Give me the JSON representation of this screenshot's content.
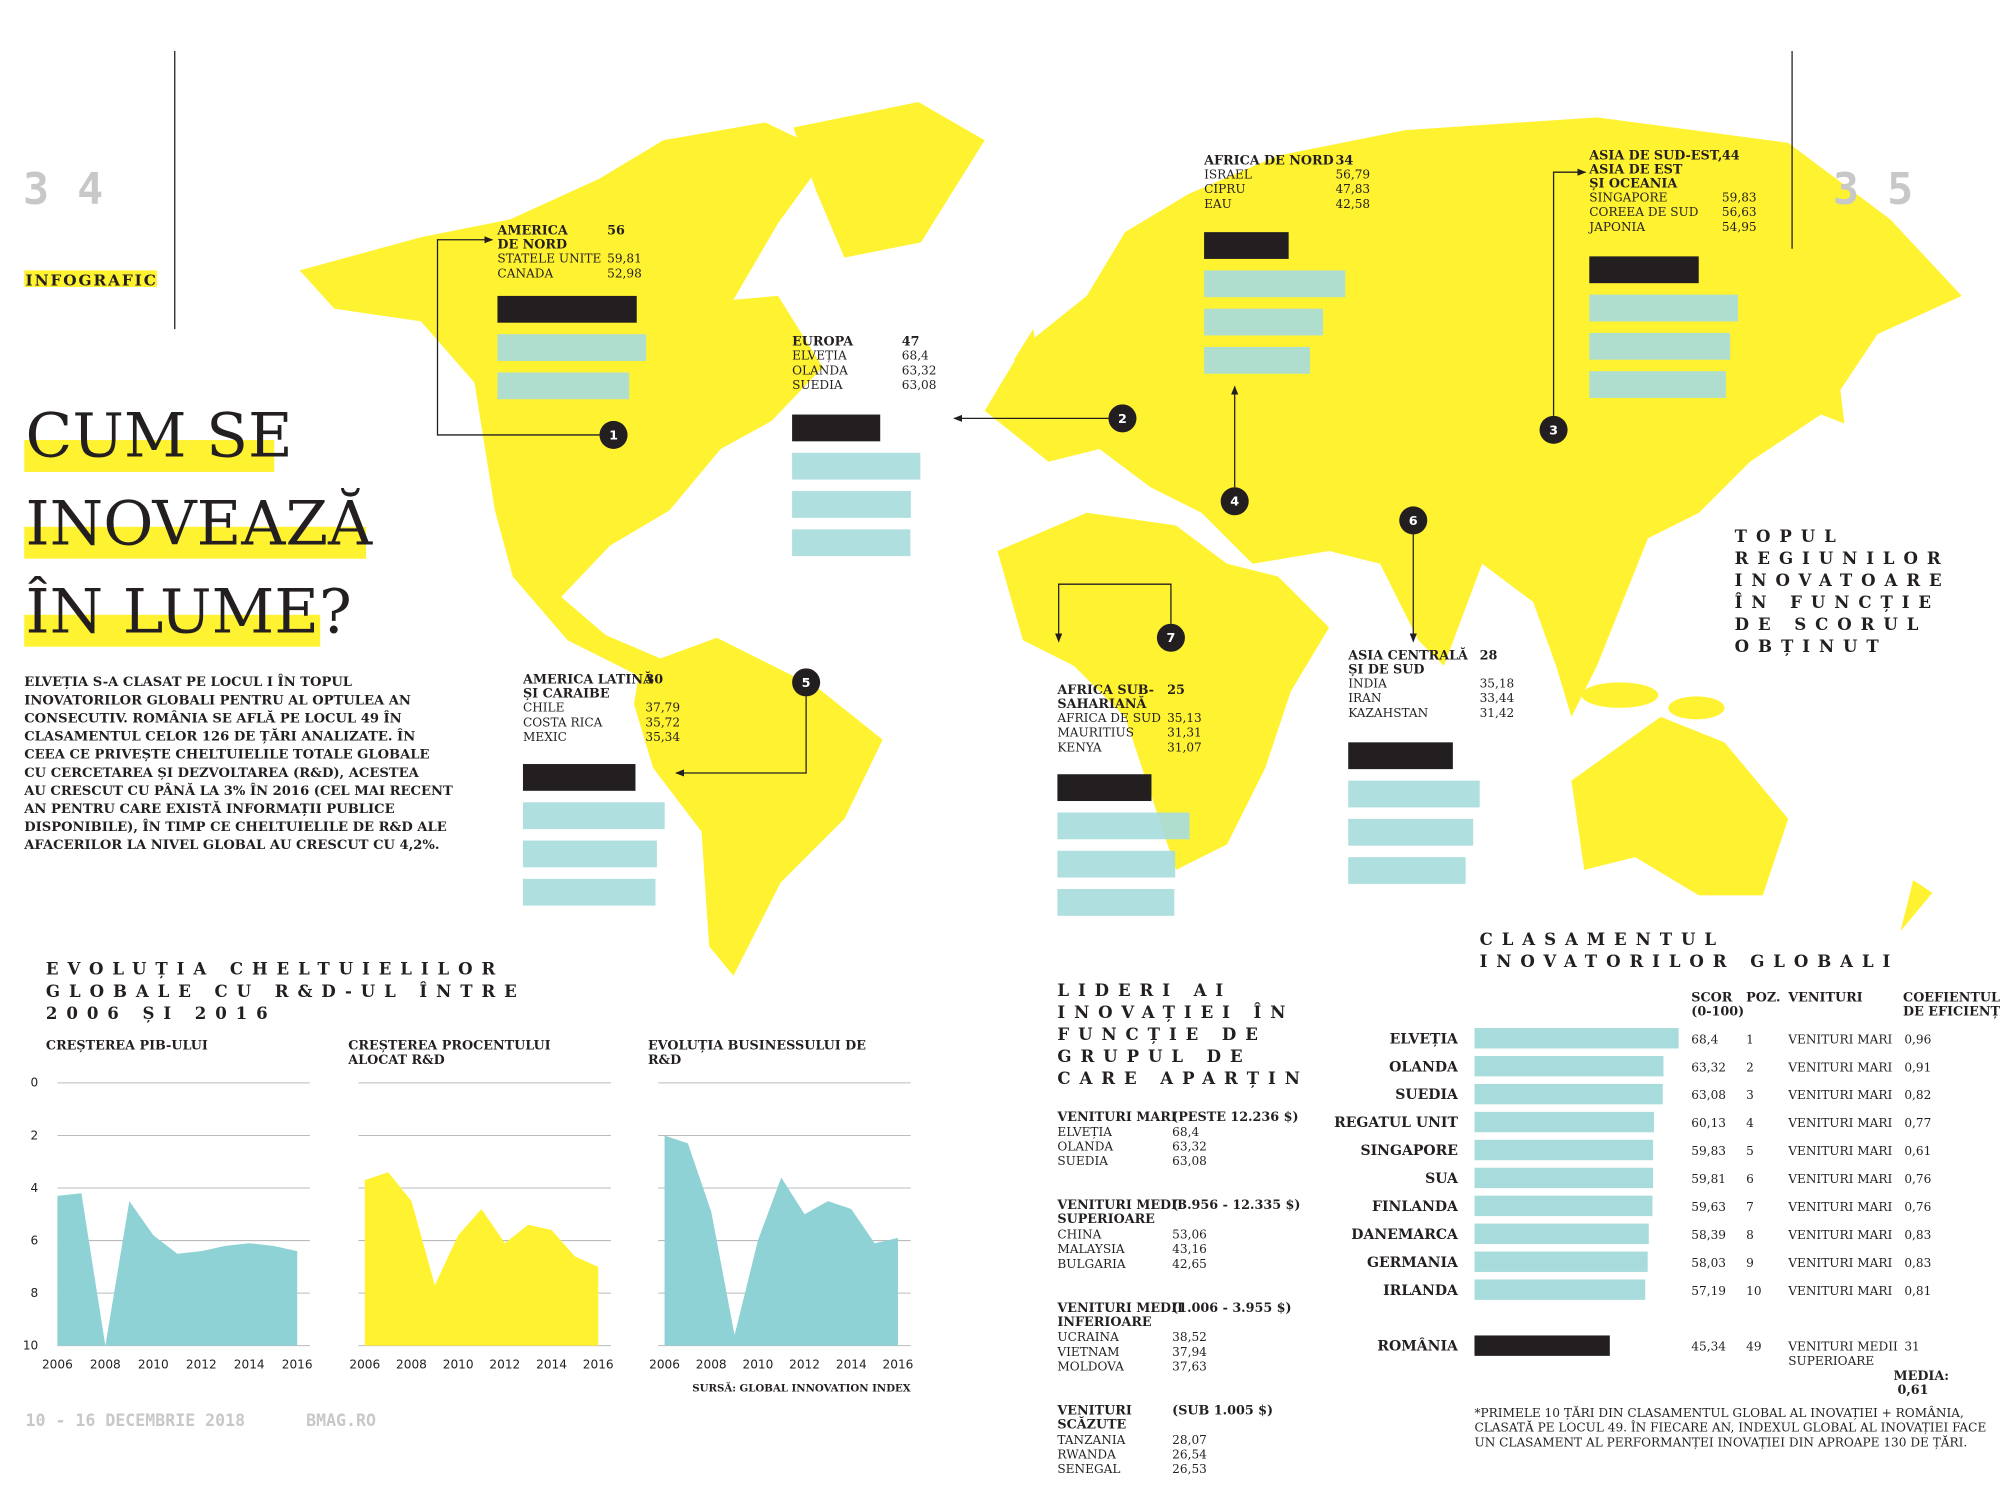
{
  "header": {
    "left_page": "34",
    "right_page": "35",
    "section": "INFOGRAFIC"
  },
  "title_lines": [
    "CUM SE",
    "INOVEAZĂ",
    "ÎN LUME?"
  ],
  "intro_lines": [
    "ELVEȚIA S-A CLASAT PE LOCUL I ÎN TOPUL",
    "INOVATORILOR GLOBALI PENTRU AL OPTULEA AN",
    "CONSECUTIV. ROMÂNIA SE AFLĂ PE LOCUL 49 ÎN",
    "CLASAMENTUL CELOR 126 DE ȚĂRI ANALIZATE. ÎN",
    "CEEA CE PRIVEȘTE CHELTUIELILE TOTALE GLOBALE",
    "CU CERCETAREA ȘI DEZVOLTAREA (R&D), ACESTEA",
    "AU CRESCUT CU PÂNĂ LA 3% ÎN 2016 (CEL MAI RECENT",
    "AN PENTRU CARE EXISTĂ INFORMAȚII PUBLICE",
    "DISPONIBILE), ÎN TIMP CE CHELTUIELILE DE R&D ALE",
    "AFACERILOR LA NIVEL GLOBAL AU CRESCUT CU 4,2%."
  ],
  "regions_title_lines": [
    "TOPUL",
    "REGIUNILOR",
    "INOVATOARE",
    "ÎN FUNCȚIE",
    "DE SCORUL",
    "OBȚINUT"
  ],
  "regions": [
    {
      "marker": "1",
      "name": [
        "AMERICA",
        "DE NORD"
      ],
      "score": 56,
      "countries": [
        {
          "name": "STATELE UNITE",
          "value": 59.81,
          "label": "59,81"
        },
        {
          "name": "CANADA",
          "value": 52.98,
          "label": "52,98"
        }
      ]
    },
    {
      "marker": "2",
      "name": [
        "EUROPA"
      ],
      "score": 47,
      "countries": [
        {
          "name": "ELVEȚIA",
          "value": 68.4,
          "label": "68,4"
        },
        {
          "name": "OLANDA",
          "value": 63.32,
          "label": "63,32"
        },
        {
          "name": "SUEDIA",
          "value": 63.08,
          "label": "63,08"
        }
      ]
    },
    {
      "marker": "3",
      "name": [
        "ASIA DE SUD-EST,",
        "ASIA DE EST",
        "ȘI OCEANIA"
      ],
      "score": 44,
      "countries": [
        {
          "name": "SINGAPORE",
          "value": 59.83,
          "label": "59,83"
        },
        {
          "name": "COREEA DE SUD",
          "value": 56.63,
          "label": "56,63"
        },
        {
          "name": "JAPONIA",
          "value": 54.95,
          "label": "54,95"
        }
      ]
    },
    {
      "marker": "4",
      "name": [
        "AFRICA DE NORD"
      ],
      "score": 34,
      "countries": [
        {
          "name": "ISRAEL",
          "value": 56.79,
          "label": "56,79"
        },
        {
          "name": "CIPRU",
          "value": 47.83,
          "label": "47,83"
        },
        {
          "name": "EAU",
          "value": 42.58,
          "label": "42,58"
        }
      ]
    },
    {
      "marker": "5",
      "name": [
        "AMERICA LATINĂ",
        "ȘI CARAIBE"
      ],
      "score": 30,
      "countries": [
        {
          "name": "CHILE",
          "value": 37.79,
          "label": "37,79"
        },
        {
          "name": "COSTA RICA",
          "value": 35.72,
          "label": "35,72"
        },
        {
          "name": "MEXIC",
          "value": 35.34,
          "label": "35,34"
        }
      ]
    },
    {
      "marker": "6",
      "name": [
        "ASIA CENTRALĂ",
        "ȘI DE SUD"
      ],
      "score": 28,
      "countries": [
        {
          "name": "INDIA",
          "value": 35.18,
          "label": "35,18"
        },
        {
          "name": "IRAN",
          "value": 33.44,
          "label": "33,44"
        },
        {
          "name": "KAZAHSTAN",
          "value": 31.42,
          "label": "31,42"
        }
      ]
    },
    {
      "marker": "7",
      "name": [
        "AFRICA SUB-",
        "SAHARIANĂ"
      ],
      "score": 25,
      "countries": [
        {
          "name": "AFRICA DE SUD",
          "value": 35.13,
          "label": "35,13"
        },
        {
          "name": "MAURITIUS",
          "value": 31.31,
          "label": "31,31"
        },
        {
          "name": "KENYA",
          "value": 31.07,
          "label": "31,07"
        }
      ]
    }
  ],
  "spending_title_lines": [
    "EVOLUȚIA CHELTUIELILOR",
    "GLOBALE CU R&D-UL ÎNTRE",
    "2006 ȘI 2016"
  ],
  "chart_data": [
    {
      "type": "area",
      "title": "CREȘTEREA PIB-ULUI",
      "color": "#8ed2d6",
      "x": [
        2006,
        2007,
        2008,
        2009,
        2010,
        2011,
        2012,
        2013,
        2014,
        2015,
        2016
      ],
      "values": [
        4.3,
        4.2,
        10,
        4.5,
        5.8,
        6.5,
        6.4,
        6.2,
        6.1,
        6.2,
        6.4
      ],
      "xlim": [
        2006,
        2016
      ],
      "xticks": [
        2006,
        2008,
        2010,
        2012,
        2014,
        2016
      ],
      "ylim": [
        10,
        0
      ],
      "yticks": [
        0,
        2,
        4,
        6,
        8,
        10
      ],
      "grid": true
    },
    {
      "type": "area",
      "title": "CREȘTEREA PROCENTULUI ALOCAT R&D",
      "color": "#fff230",
      "x": [
        2006,
        2007,
        2008,
        2009,
        2010,
        2011,
        2012,
        2013,
        2014,
        2015,
        2016
      ],
      "values": [
        3.7,
        3.4,
        4.5,
        7.7,
        5.8,
        4.8,
        6.1,
        5.4,
        5.6,
        6.6,
        7.0
      ],
      "xlim": [
        2006,
        2016
      ],
      "xticks": [
        2006,
        2008,
        2010,
        2012,
        2014,
        2016
      ],
      "ylim": [
        10,
        0
      ],
      "yticks": [
        0,
        2,
        4,
        6,
        8,
        10
      ],
      "grid": true
    },
    {
      "type": "area",
      "title": "EVOLUȚIA BUSINESSULUI DE R&D",
      "color": "#8ed2d6",
      "x": [
        2006,
        2007,
        2008,
        2009,
        2010,
        2011,
        2012,
        2013,
        2014,
        2015,
        2016
      ],
      "values": [
        2.0,
        2.3,
        4.9,
        9.6,
        6.0,
        3.6,
        5.0,
        4.5,
        4.8,
        6.1,
        5.9
      ],
      "xlim": [
        2006,
        2016
      ],
      "xticks": [
        2006,
        2008,
        2010,
        2012,
        2014,
        2016
      ],
      "ylim": [
        10,
        0
      ],
      "yticks": [
        0,
        2,
        4,
        6,
        8,
        10
      ],
      "grid": true
    }
  ],
  "source": "SURSĂ: GLOBAL INNOVATION INDEX",
  "leaders": {
    "title_lines": [
      "LIDERI AI",
      "INOVAȚIEI ÎN",
      "FUNCȚIE DE",
      "GRUPUL DE",
      "CARE APARȚIN"
    ],
    "groups": [
      {
        "title": [
          "VENITURI MARI"
        ],
        "range": "(PESTE 12.236 $)",
        "rows": [
          [
            "ELVEȚIA",
            "68,4"
          ],
          [
            "OLANDA",
            "63,32"
          ],
          [
            "SUEDIA",
            "63,08"
          ]
        ]
      },
      {
        "title": [
          "VENITURI MEDII",
          "SUPERIOARE"
        ],
        "range": "(3.956 - 12.335 $)",
        "rows": [
          [
            "CHINA",
            "53,06"
          ],
          [
            "MALAYSIA",
            "43,16"
          ],
          [
            "BULGARIA",
            "42,65"
          ]
        ]
      },
      {
        "title": [
          "VENITURI MEDII",
          "INFERIOARE"
        ],
        "range": "(1.006 - 3.955 $)",
        "rows": [
          [
            "UCRAINA",
            "38,52"
          ],
          [
            "VIETNAM",
            "37,94"
          ],
          [
            "MOLDOVA",
            "37,63"
          ]
        ]
      },
      {
        "title": [
          "VENITURI",
          "SCĂZUTE"
        ],
        "range": "(SUB 1.005 $)",
        "rows": [
          [
            "TANZANIA",
            "28,07"
          ],
          [
            "RWANDA",
            "26,54"
          ],
          [
            "SENEGAL",
            "26,53"
          ]
        ]
      }
    ]
  },
  "ranking": {
    "title_lines": [
      "CLASAMENTUL",
      "INOVATORILOR GLOBALI"
    ],
    "headers": {
      "score": [
        "SCOR",
        "(0-100)"
      ],
      "position": "POZ.",
      "revenue": "VENITURI",
      "coef": [
        "COEFIENTUL",
        "DE EFICIENȚĂ"
      ]
    },
    "rows": [
      {
        "country": "ELVEȚIA",
        "score": 68.4,
        "score_label": "68,4",
        "position": 1,
        "revenue": [
          "VENITURI MARI"
        ],
        "coef": "0,96"
      },
      {
        "country": "OLANDA",
        "score": 63.32,
        "score_label": "63,32",
        "position": 2,
        "revenue": [
          "VENITURI MARI"
        ],
        "coef": "0,91"
      },
      {
        "country": "SUEDIA",
        "score": 63.08,
        "score_label": "63,08",
        "position": 3,
        "revenue": [
          "VENITURI MARI"
        ],
        "coef": "0,82"
      },
      {
        "country": "REGATUL UNIT",
        "score": 60.13,
        "score_label": "60,13",
        "position": 4,
        "revenue": [
          "VENITURI MARI"
        ],
        "coef": "0,77"
      },
      {
        "country": "SINGAPORE",
        "score": 59.83,
        "score_label": "59,83",
        "position": 5,
        "revenue": [
          "VENITURI MARI"
        ],
        "coef": "0,61"
      },
      {
        "country": "SUA",
        "score": 59.81,
        "score_label": "59,81",
        "position": 6,
        "revenue": [
          "VENITURI MARI"
        ],
        "coef": "0,76"
      },
      {
        "country": "FINLANDA",
        "score": 59.63,
        "score_label": "59,63",
        "position": 7,
        "revenue": [
          "VENITURI MARI"
        ],
        "coef": "0,76"
      },
      {
        "country": "DANEMARCA",
        "score": 58.39,
        "score_label": "58,39",
        "position": 8,
        "revenue": [
          "VENITURI MARI"
        ],
        "coef": "0,83"
      },
      {
        "country": "GERMANIA",
        "score": 58.03,
        "score_label": "58,03",
        "position": 9,
        "revenue": [
          "VENITURI MARI"
        ],
        "coef": "0,83"
      },
      {
        "country": "IRLANDA",
        "score": 57.19,
        "score_label": "57,19",
        "position": 10,
        "revenue": [
          "VENITURI MARI"
        ],
        "coef": "0,81"
      },
      {
        "country": "ROMÂNIA",
        "score": 45.34,
        "score_label": "45,34",
        "position": 49,
        "revenue": [
          "VENITURI MEDII",
          "SUPERIOARE"
        ],
        "coef": "31"
      }
    ],
    "media": {
      "label": "MEDIA:",
      "value": "0,61"
    },
    "footnote_lines": [
      "*PRIMELE 10 ȚĂRI DIN CLASAMENTUL GLOBAL AL INOVAȚIEI + ROMÂNIA,",
      "CLASATĂ PE LOCUL 49. ÎN FIECARE AN, INDEXUL GLOBAL AL INOVAȚIEI FACE",
      "UN CLASAMENT AL PERFORMANȚEI INOVAȚIEI DIN APROAPE 130 DE ȚĂRI."
    ]
  },
  "footer": {
    "issue": "10 - 16 DECEMBRIE 2018",
    "site": "BMAG.RO"
  }
}
